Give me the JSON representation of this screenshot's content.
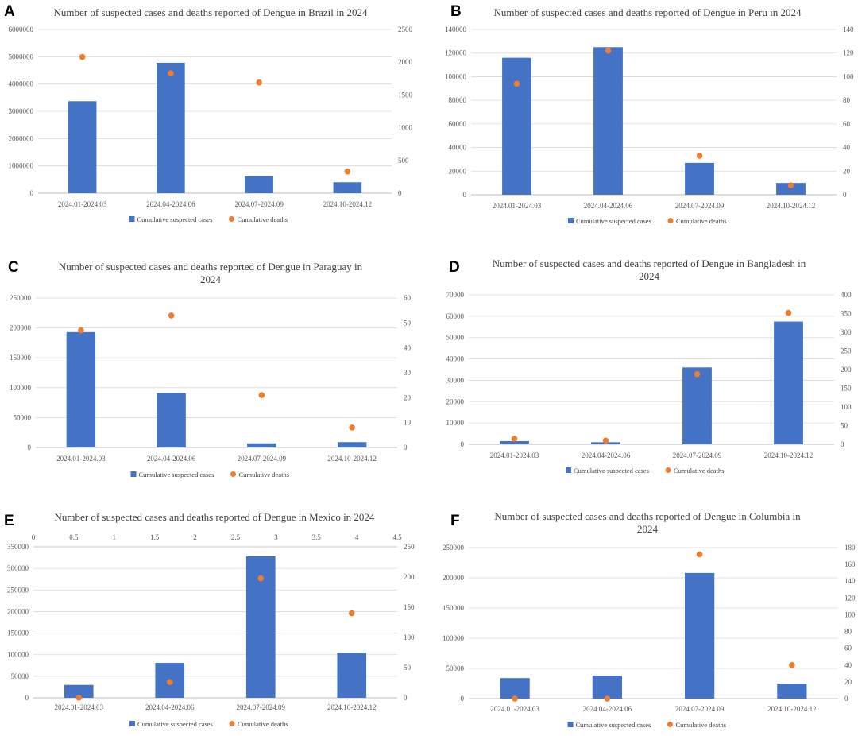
{
  "colors": {
    "bar": "#4472C4",
    "dot": "#ED7D31",
    "grid": "#D9D9D9",
    "axis": "#BFBFBF",
    "text": "#595959"
  },
  "legend": {
    "cases": "Cumulative suspected cases",
    "deaths": "Cumulative deaths"
  },
  "chart_data": [
    {
      "panel": "A",
      "type": "bar",
      "title": [
        "Number of suspected cases and deaths reported of Dengue in Brazil in 2024"
      ],
      "categories": [
        "2024.01-2024.03",
        "2024.04-2024.06",
        "2024.07-2024.09",
        "2024.10-2024.12"
      ],
      "series": [
        {
          "name": "Cumulative suspected cases",
          "axis": "left",
          "type": "bar",
          "values": [
            3370000,
            4780000,
            620000,
            400000
          ]
        },
        {
          "name": "Cumulative deaths",
          "axis": "right",
          "type": "scatter",
          "values": [
            2080,
            1830,
            1690,
            330
          ]
        }
      ],
      "ylim_left": [
        0,
        6000000
      ],
      "yticks_left": [
        "0",
        "1000000",
        "2000000",
        "3000000",
        "4000000",
        "5000000",
        "6000000"
      ],
      "ylim_right": [
        0,
        2500
      ],
      "yticks_right": [
        "0",
        "500",
        "1000",
        "1500",
        "2000",
        "2500"
      ],
      "legend_position": "bottom"
    },
    {
      "panel": "B",
      "type": "bar",
      "title": [
        "Number of suspected cases and deaths reported of Dengue in Peru in 2024"
      ],
      "categories": [
        "2024.01-2024.03",
        "2024.04-2024.06",
        "2024.07-2024.09",
        "2024.10-2024.12"
      ],
      "series": [
        {
          "name": "Cumulative suspected cases",
          "axis": "left",
          "type": "bar",
          "values": [
            116000,
            125000,
            27000,
            10000
          ]
        },
        {
          "name": "Cumulative deaths",
          "axis": "right",
          "type": "scatter",
          "values": [
            94,
            122,
            33,
            8
          ]
        }
      ],
      "ylim_left": [
        0,
        140000
      ],
      "yticks_left": [
        "0",
        "20000",
        "40000",
        "60000",
        "80000",
        "100000",
        "120000",
        "140000"
      ],
      "ylim_right": [
        0,
        140
      ],
      "yticks_right": [
        "0",
        "20",
        "40",
        "60",
        "80",
        "100",
        "120",
        "140"
      ],
      "legend_position": "bottom"
    },
    {
      "panel": "C",
      "type": "bar",
      "title": [
        "Number of suspected cases and deaths reported of Dengue in Paraguay in",
        "2024"
      ],
      "categories": [
        "2024.01-2024.03",
        "2024.04-2024.06",
        "2024.07-2024.09",
        "2024.10-2024.12"
      ],
      "series": [
        {
          "name": "Cumulative suspected cases",
          "axis": "left",
          "type": "bar",
          "values": [
            193000,
            91000,
            7000,
            9000
          ]
        },
        {
          "name": "Cumulative deaths",
          "axis": "right",
          "type": "scatter",
          "values": [
            47,
            53,
            21,
            8
          ]
        }
      ],
      "ylim_left": [
        0,
        250000
      ],
      "yticks_left": [
        "0",
        "50000",
        "100000",
        "150000",
        "200000",
        "250000"
      ],
      "ylim_right": [
        0,
        60
      ],
      "yticks_right": [
        "0",
        "10",
        "20",
        "30",
        "40",
        "50",
        "60"
      ],
      "legend_position": "bottom"
    },
    {
      "panel": "D",
      "type": "bar",
      "title": [
        "Number of suspected cases and deaths reported of Dengue in Bangladesh in",
        "2024"
      ],
      "categories": [
        "2024.01-2024.03",
        "2024.04-2024.06",
        "2024.07-2024.09",
        "2024.10-2024.12"
      ],
      "series": [
        {
          "name": "Cumulative suspected cases",
          "axis": "left",
          "type": "bar",
          "values": [
            1500,
            1000,
            36000,
            57500
          ]
        },
        {
          "name": "Cumulative deaths",
          "axis": "right",
          "type": "scatter",
          "values": [
            15,
            10,
            188,
            352
          ]
        }
      ],
      "ylim_left": [
        0,
        70000
      ],
      "yticks_left": [
        "0",
        "10000",
        "20000",
        "30000",
        "40000",
        "50000",
        "60000",
        "70000"
      ],
      "ylim_right": [
        0,
        400
      ],
      "yticks_right": [
        "0",
        "50",
        "100",
        "150",
        "200",
        "250",
        "300",
        "350",
        "400"
      ],
      "legend_position": "bottom"
    },
    {
      "panel": "E",
      "type": "bar",
      "title": [
        "Number of suspected cases and deaths reported of Dengue in Mexico in 2024"
      ],
      "categories": [
        "2024.01-2024.03",
        "2024.04-2024.06",
        "2024.07-2024.09",
        "2024.10-2024.12"
      ],
      "series": [
        {
          "name": "Cumulative suspected cases",
          "axis": "left",
          "type": "bar",
          "values": [
            30000,
            81000,
            328000,
            104000
          ]
        },
        {
          "name": "Cumulative deaths",
          "axis": "right",
          "type": "scatter",
          "values": [
            0,
            26,
            198,
            140
          ]
        }
      ],
      "ylim_left": [
        0,
        350000
      ],
      "yticks_left": [
        "0",
        "50000",
        "100000",
        "150000",
        "200000",
        "250000",
        "300000",
        "350000"
      ],
      "ylim_right": [
        0,
        250
      ],
      "yticks_right": [
        "0",
        "50",
        "100",
        "150",
        "200",
        "250"
      ],
      "xlim_top": [
        0,
        4.5
      ],
      "xticks_top": [
        "0",
        "0.5",
        "1",
        "1.5",
        "2",
        "2.5",
        "3",
        "3.5",
        "4",
        "4.5"
      ],
      "legend_position": "bottom"
    },
    {
      "panel": "F",
      "type": "bar",
      "title": [
        "Number of suspected cases and deaths reported of Dengue in Columbia in",
        "2024"
      ],
      "categories": [
        "2024.01-2024.03",
        "2024.04-2024.06",
        "2024.07-2024.09",
        "2024.10-2024.12"
      ],
      "series": [
        {
          "name": "Cumulative suspected cases",
          "axis": "left",
          "type": "bar",
          "values": [
            34000,
            38000,
            208000,
            25000
          ]
        },
        {
          "name": "Cumulative deaths",
          "axis": "right",
          "type": "scatter",
          "values": [
            0,
            0,
            172,
            40
          ]
        }
      ],
      "ylim_left": [
        0,
        250000
      ],
      "yticks_left": [
        "0",
        "50000",
        "100000",
        "150000",
        "200000",
        "250000"
      ],
      "ylim_right": [
        0,
        180
      ],
      "yticks_right": [
        "0",
        "20",
        "40",
        "60",
        "80",
        "100",
        "120",
        "140",
        "160",
        "180"
      ],
      "legend_position": "bottom"
    }
  ]
}
